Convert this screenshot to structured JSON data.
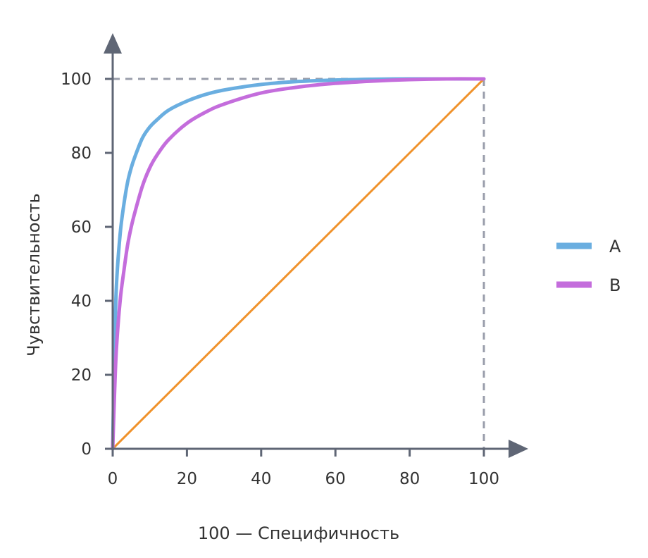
{
  "chart_data": {
    "type": "line",
    "title": "",
    "xlabel": "100 — Специфичность",
    "ylabel": "Чувствительность",
    "xlim": [
      0,
      100
    ],
    "ylim": [
      0,
      100
    ],
    "x_ticks": [
      0,
      20,
      40,
      60,
      80,
      100
    ],
    "y_ticks": [
      0,
      20,
      40,
      60,
      80,
      100
    ],
    "grid": false,
    "legend_position": "right",
    "reference_line": {
      "x": [
        0,
        100
      ],
      "y": [
        0,
        100
      ],
      "color": "#f0922b"
    },
    "bounds_guides": {
      "x": 100,
      "y": 100,
      "style": "dashed",
      "color": "#9a9eab"
    },
    "series": [
      {
        "name": "A",
        "color": "#6aaee0",
        "x": [
          0,
          0.5,
          1,
          2,
          3,
          4,
          5,
          6,
          8,
          10,
          12,
          15,
          20,
          25,
          30,
          40,
          50,
          60,
          70,
          80,
          90,
          100
        ],
        "y": [
          0,
          27,
          44,
          58,
          66,
          72,
          76,
          79,
          84,
          87,
          89,
          91.5,
          94,
          95.8,
          97,
          98.5,
          99.3,
          99.7,
          99.9,
          100,
          100,
          100
        ]
      },
      {
        "name": "B",
        "color": "#c46ddc",
        "x": [
          0,
          0.5,
          1,
          2,
          3,
          4,
          5,
          6,
          8,
          10,
          12,
          15,
          20,
          25,
          30,
          40,
          50,
          60,
          70,
          80,
          90,
          100
        ],
        "y": [
          0,
          15,
          27,
          40,
          48,
          55,
          60,
          64,
          71,
          76,
          79.5,
          83.5,
          88,
          91,
          93.2,
          96.2,
          97.8,
          98.8,
          99.4,
          99.8,
          100,
          100
        ]
      }
    ]
  }
}
